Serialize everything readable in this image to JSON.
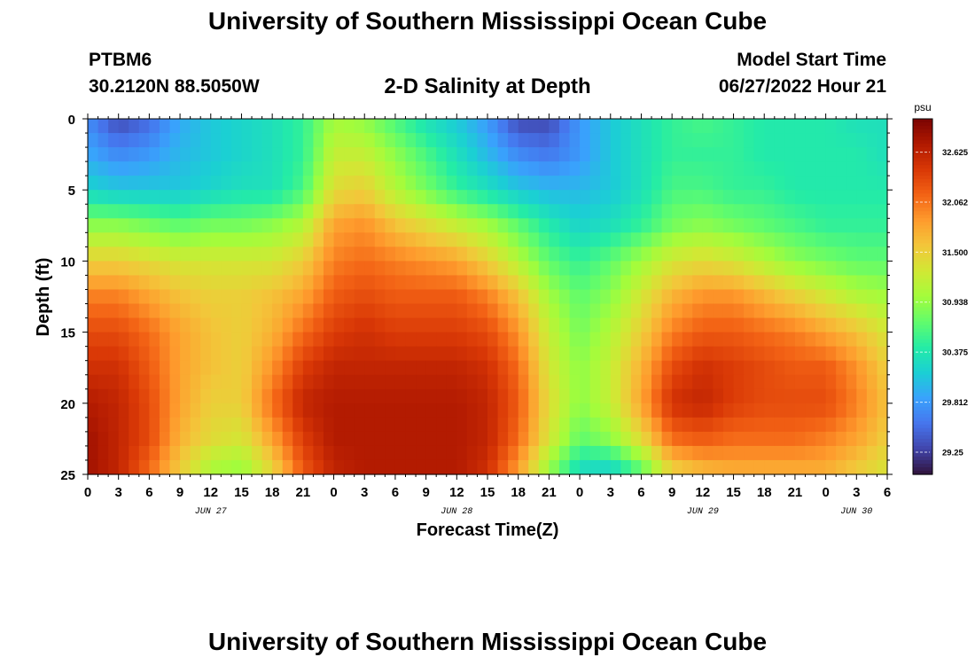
{
  "header": {
    "title": "University of Southern Mississippi Ocean Cube",
    "station_id": "PTBM6",
    "station_coords": "30.2120N  88.5050W",
    "chart_title": "2-D Salinity at Depth",
    "model_label": "Model Start Time",
    "model_time": "06/27/2022 Hour 21"
  },
  "footer": {
    "title": "University of Southern Mississippi Ocean Cube"
  },
  "chart_data": {
    "type": "heatmap",
    "title": "2-D Salinity at Depth",
    "xlabel": "Forecast Time(Z)",
    "ylabel": "Depth (ft)",
    "x_tick_labels": [
      "0",
      "3",
      "6",
      "9",
      "12",
      "15",
      "18",
      "21",
      "0",
      "3",
      "6",
      "9",
      "12",
      "15",
      "18",
      "21",
      "0",
      "3",
      "6",
      "9",
      "12",
      "15",
      "18",
      "21",
      "0",
      "3",
      "6"
    ],
    "date_labels": [
      "JUN 27",
      "JUN 28",
      "JUN 29",
      "JUN 30"
    ],
    "x_range_hours": [
      0,
      78
    ],
    "date_label_hours": [
      12,
      36,
      60,
      75
    ],
    "y_ticks": [
      0,
      5,
      10,
      15,
      20,
      25
    ],
    "y_range": [
      0,
      25
    ],
    "y_inverted": true,
    "colorbar": {
      "unit": "psu",
      "range": [
        29.0,
        33.0
      ],
      "tick_values": [
        32.625,
        32.062,
        31.5,
        30.938,
        30.375,
        29.812,
        29.25
      ],
      "tick_labels": [
        "32.625",
        "32.062",
        "31.500",
        "30.938",
        "30.375",
        "29.812",
        "29.25"
      ],
      "colormap": [
        "#30123b",
        "#4145ab",
        "#4675ed",
        "#39a2fc",
        "#1bcfd4",
        "#24eca6",
        "#61fc6c",
        "#a4fc3b",
        "#d1e834",
        "#f3c63a",
        "#fe9b2d",
        "#f36315",
        "#d93806",
        "#b11901",
        "#7a0402"
      ]
    },
    "salinity_grid": {
      "hours": [
        0,
        3,
        6,
        9,
        12,
        15,
        18,
        21,
        24,
        27,
        30,
        33,
        36,
        39,
        42,
        45,
        48,
        51,
        54,
        57,
        60,
        63,
        66,
        69,
        72,
        75,
        78
      ],
      "depths": [
        0,
        2.5,
        5,
        7.5,
        10,
        12.5,
        15,
        17.5,
        20,
        22.5,
        25
      ],
      "values": [
        [
          29.7,
          29.3,
          29.5,
          29.9,
          30.1,
          30.2,
          30.3,
          30.5,
          31.0,
          30.9,
          30.6,
          30.3,
          30.1,
          29.8,
          29.3,
          29.3,
          29.8,
          30.1,
          30.3,
          30.5,
          30.6,
          30.5,
          30.4,
          30.4,
          30.4,
          30.3,
          30.3
        ],
        [
          29.9,
          29.7,
          29.8,
          30.0,
          30.1,
          30.2,
          30.3,
          30.5,
          31.2,
          31.2,
          30.9,
          30.6,
          30.3,
          30.0,
          29.7,
          29.6,
          29.8,
          30.1,
          30.3,
          30.5,
          30.5,
          30.5,
          30.4,
          30.4,
          30.4,
          30.4,
          30.3
        ],
        [
          30.2,
          30.1,
          30.1,
          30.1,
          30.2,
          30.3,
          30.3,
          30.6,
          31.4,
          31.5,
          31.1,
          30.8,
          30.5,
          30.3,
          30.1,
          30.0,
          30.0,
          30.1,
          30.3,
          30.6,
          30.6,
          30.5,
          30.5,
          30.4,
          30.4,
          30.4,
          30.4
        ],
        [
          30.9,
          30.9,
          30.8,
          30.7,
          30.8,
          30.8,
          30.9,
          31.1,
          31.8,
          31.9,
          31.6,
          31.4,
          31.2,
          31.0,
          30.7,
          30.4,
          30.2,
          30.3,
          30.5,
          30.8,
          30.9,
          30.8,
          30.7,
          30.6,
          30.5,
          30.5,
          30.5
        ],
        [
          31.5,
          31.5,
          31.4,
          31.3,
          31.3,
          31.3,
          31.3,
          31.5,
          32.0,
          32.1,
          32.0,
          31.9,
          31.8,
          31.5,
          31.1,
          30.7,
          30.5,
          30.7,
          31.0,
          31.3,
          31.4,
          31.3,
          31.1,
          30.9,
          30.8,
          30.7,
          30.7
        ],
        [
          32.0,
          32.0,
          31.8,
          31.6,
          31.5,
          31.5,
          31.6,
          31.8,
          32.2,
          32.3,
          32.2,
          32.2,
          32.2,
          32.0,
          31.6,
          31.0,
          30.7,
          30.9,
          31.3,
          31.7,
          31.9,
          31.9,
          31.7,
          31.5,
          31.3,
          31.1,
          31.0
        ],
        [
          32.3,
          32.3,
          32.1,
          31.8,
          31.6,
          31.5,
          31.7,
          32.1,
          32.4,
          32.5,
          32.4,
          32.4,
          32.4,
          32.3,
          31.9,
          31.2,
          30.8,
          31.1,
          31.5,
          32.0,
          32.2,
          32.2,
          32.1,
          32.0,
          31.8,
          31.6,
          31.3
        ],
        [
          32.5,
          32.5,
          32.2,
          31.8,
          31.6,
          31.5,
          31.9,
          32.4,
          32.6,
          32.6,
          32.6,
          32.6,
          32.6,
          32.5,
          32.1,
          31.3,
          30.9,
          31.2,
          31.7,
          32.3,
          32.5,
          32.4,
          32.3,
          32.2,
          32.2,
          31.9,
          31.5
        ],
        [
          32.7,
          32.6,
          32.3,
          31.8,
          31.5,
          31.5,
          32.1,
          32.6,
          32.7,
          32.7,
          32.7,
          32.7,
          32.7,
          32.6,
          32.2,
          31.4,
          30.9,
          31.2,
          31.8,
          32.5,
          32.6,
          32.4,
          32.3,
          32.3,
          32.3,
          32.0,
          31.6
        ],
        [
          32.8,
          32.6,
          32.3,
          31.7,
          31.4,
          31.3,
          31.8,
          32.4,
          32.7,
          32.7,
          32.7,
          32.7,
          32.7,
          32.6,
          32.1,
          31.3,
          30.7,
          30.9,
          31.4,
          32.1,
          32.2,
          32.1,
          32.1,
          32.1,
          32.0,
          31.8,
          31.5
        ],
        [
          32.8,
          32.6,
          32.1,
          31.5,
          31.0,
          30.9,
          31.4,
          32.2,
          32.6,
          32.7,
          32.7,
          32.7,
          32.7,
          32.5,
          31.8,
          30.9,
          30.2,
          30.1,
          30.6,
          31.4,
          31.6,
          31.7,
          31.7,
          31.7,
          31.7,
          31.5,
          31.3
        ]
      ]
    }
  }
}
